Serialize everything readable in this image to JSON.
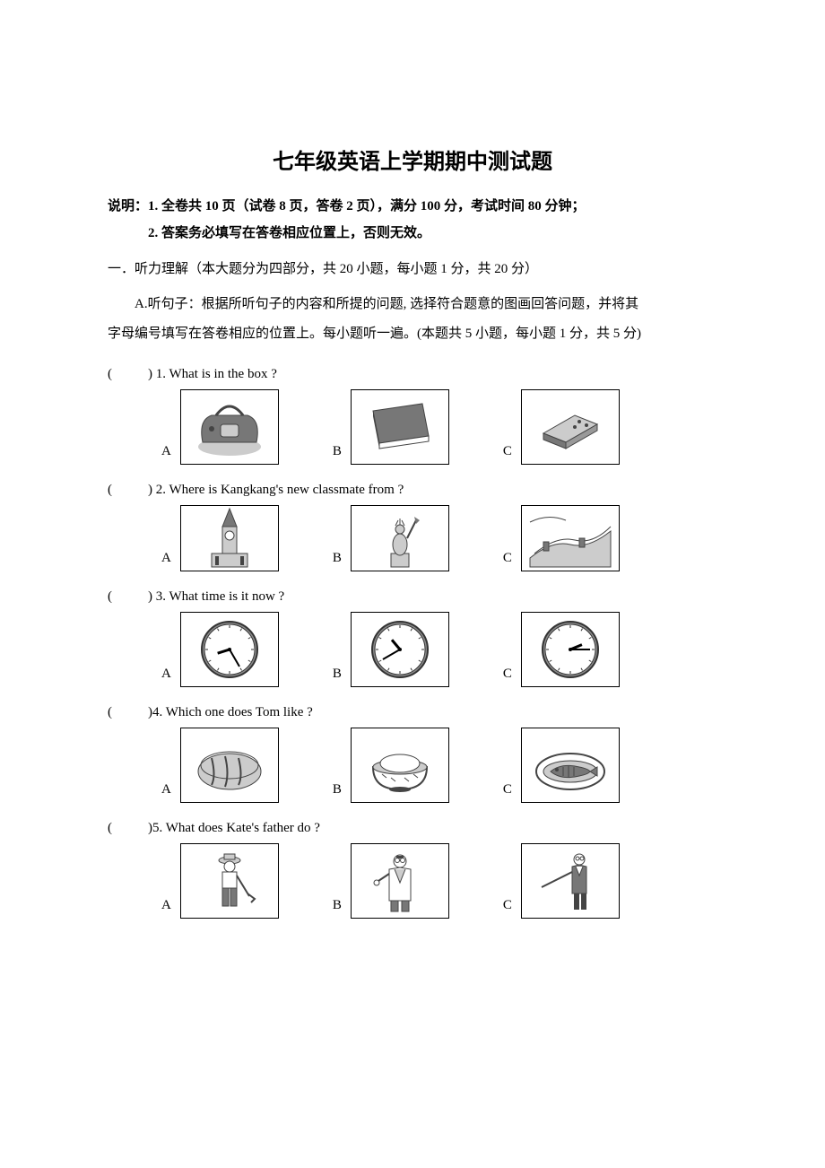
{
  "title": "七年级英语上学期期中测试题",
  "instr_label": "说明：",
  "instr_line1": "1. 全卷共 10 页（试卷 8 页，答卷 2 页），满分 100 分，考试时间 80 分钟；",
  "instr_line2": "2. 答案务必填写在答卷相应位置上，否则无效。",
  "section1_heading": "一．听力理解（本大题分为四部分，共 20 小题，每小题 1 分，共 20 分）",
  "partA_prefix": "A.",
  "partA_line1": "听句子：根据所听句子的内容和所提的问题, 选择符合题意的图画回答问题，并将其",
  "partA_line2": "字母编号填写在答卷相应的位置上。每小题听一遍。",
  "partA_scoring": "(本题共 5 小题，每小题 1 分，共 5 分)",
  "questions": [
    {
      "num": "1",
      "text": ") 1. What is in the box ?",
      "opts": [
        "A",
        "B",
        "C"
      ],
      "icons": [
        "bag",
        "book",
        "eraser"
      ]
    },
    {
      "num": "2",
      "text": ") 2. Where is Kangkang's new classmate from ?",
      "opts": [
        "A",
        "B",
        "C"
      ],
      "icons": [
        "bigben",
        "liberty",
        "greatwall"
      ]
    },
    {
      "num": "3",
      "text": ") 3. What time is it now ?",
      "opts": [
        "A",
        "B",
        "C"
      ],
      "icons": [
        "clock1",
        "clock2",
        "clock3"
      ]
    },
    {
      "num": "4",
      "text": ")4. Which one does Tom like ?",
      "opts": [
        "A",
        "B",
        "C"
      ],
      "icons": [
        "bread",
        "rice",
        "fish"
      ]
    },
    {
      "num": "5",
      "text": ")5. What does Kate's father do ?",
      "opts": [
        "A",
        "B",
        "C"
      ],
      "icons": [
        "farmer",
        "doctor",
        "teacher"
      ]
    }
  ],
  "blank_open": "(",
  "style": {
    "text_color": "#000000",
    "bg_color": "#ffffff",
    "border_color": "#000000",
    "title_fontsize": 24,
    "body_fontsize": 15,
    "imgbox_w": 108,
    "imgbox_h": 82,
    "clock_times": {
      "clock1": {
        "h": 8,
        "m": 25
      },
      "clock2": {
        "h": 10,
        "m": 40
      },
      "clock3": {
        "h": 2,
        "m": 15
      }
    }
  }
}
